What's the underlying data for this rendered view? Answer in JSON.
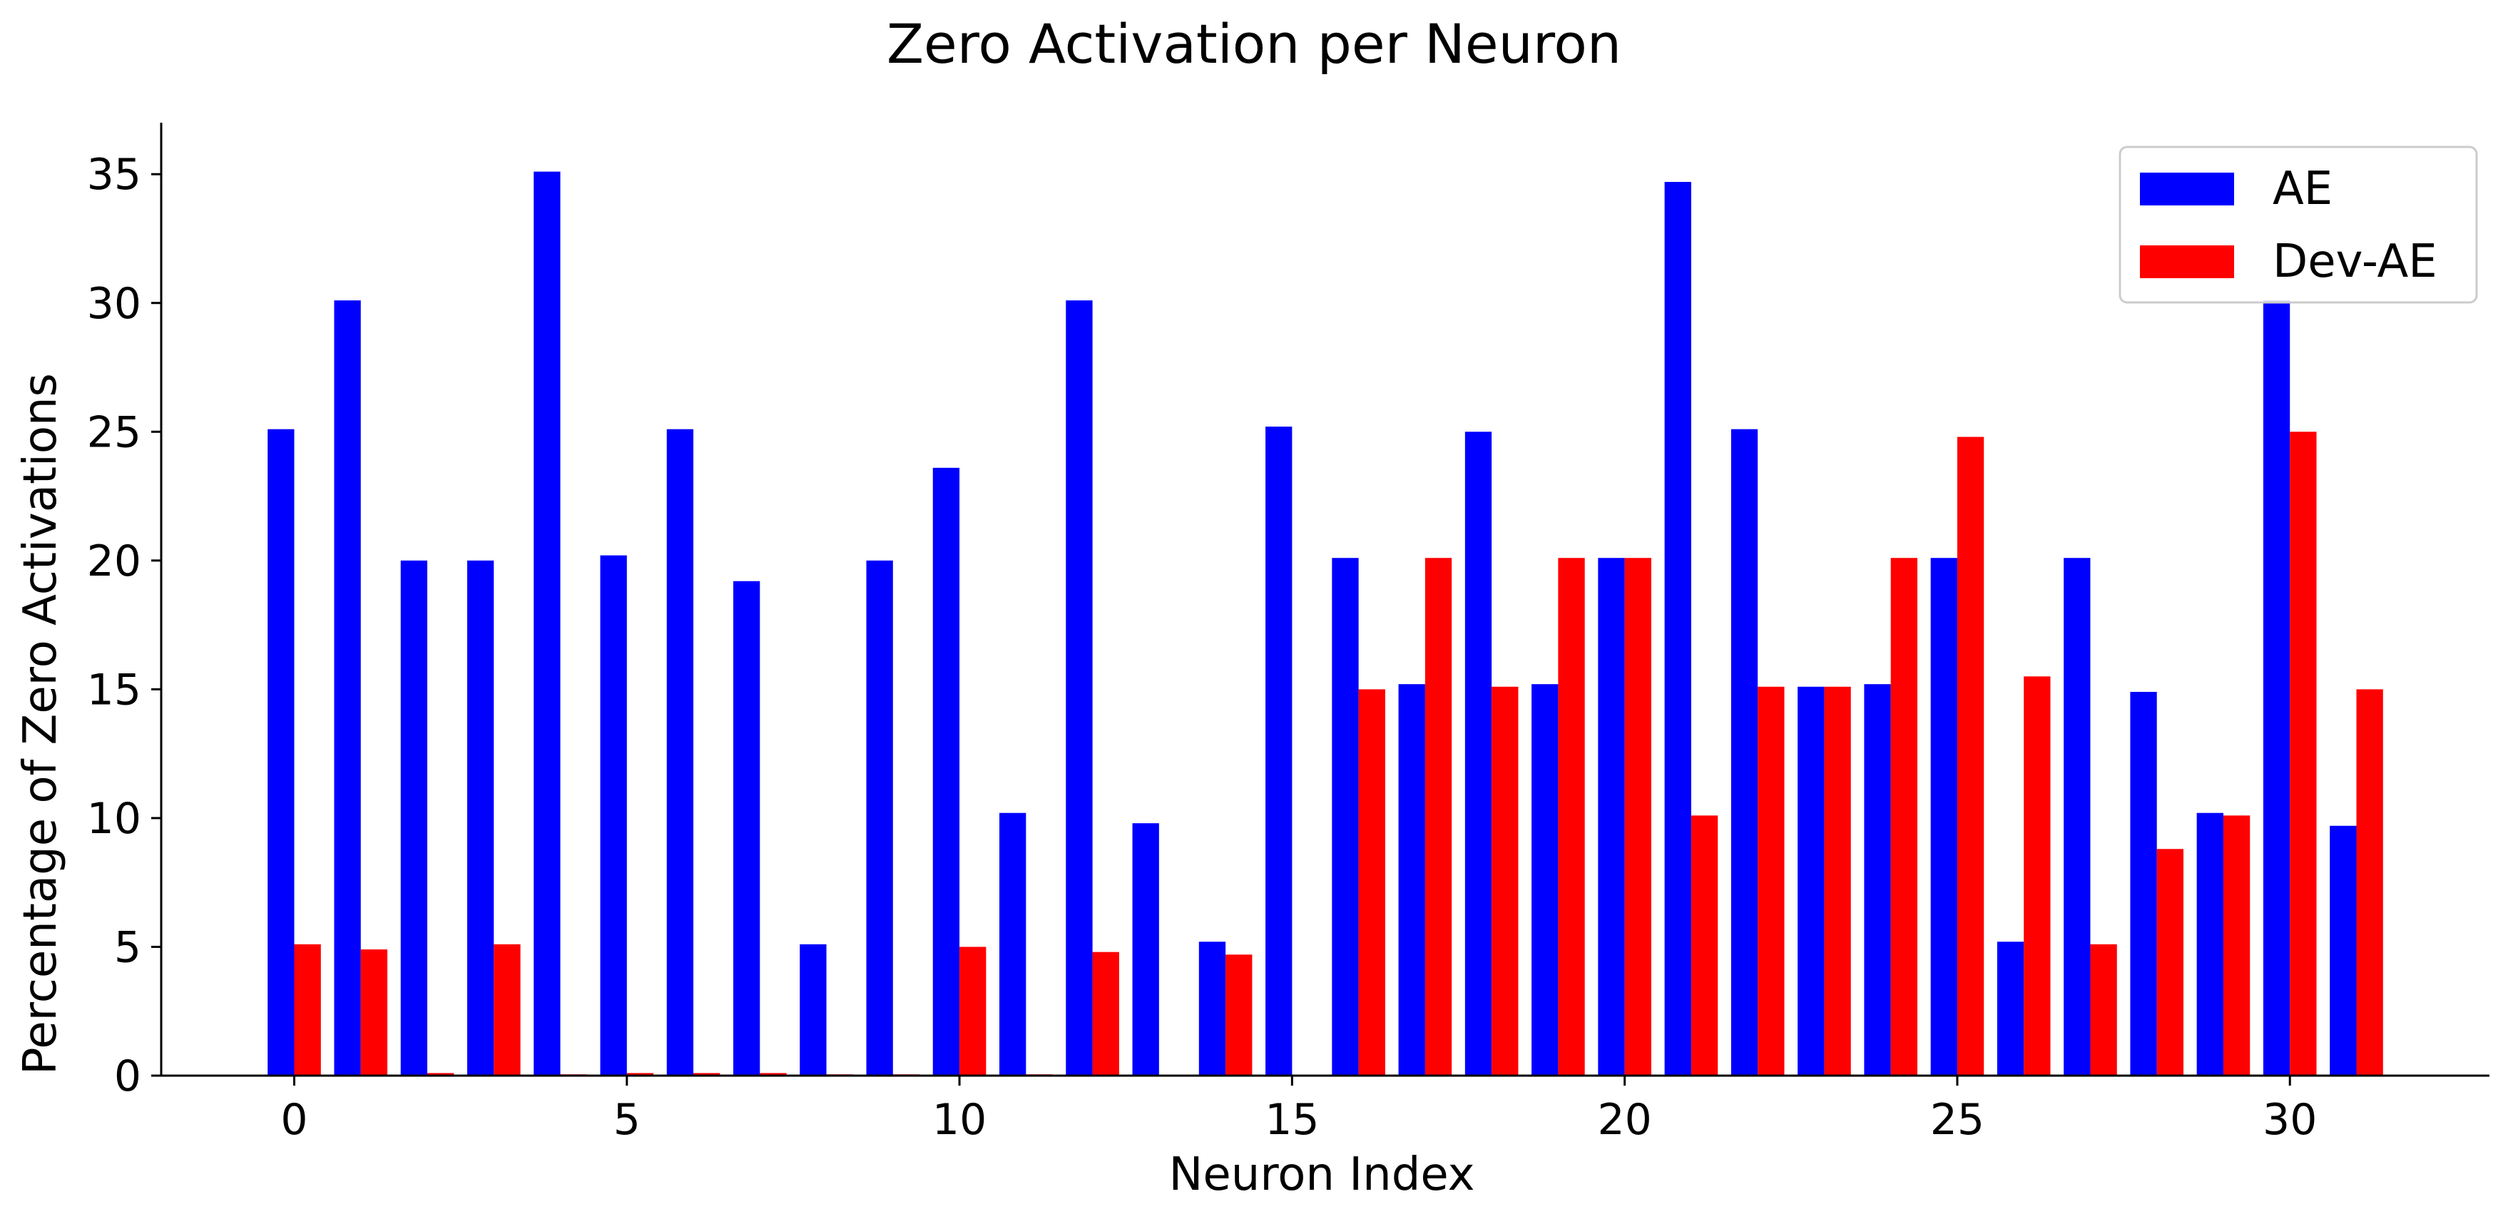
{
  "chart_data": {
    "type": "bar",
    "title": "Zero Activation per Neuron",
    "xlabel": "Neuron Index",
    "ylabel": "Percentage of Zero Activations",
    "x": [
      0,
      1,
      2,
      3,
      4,
      5,
      6,
      7,
      8,
      9,
      10,
      11,
      12,
      13,
      14,
      15,
      16,
      17,
      18,
      19,
      20,
      21,
      22,
      23,
      24,
      25,
      26,
      27,
      28,
      29,
      30,
      31
    ],
    "xticks": [
      0,
      5,
      10,
      15,
      20,
      25,
      30
    ],
    "yticks": [
      0,
      5,
      10,
      15,
      20,
      25,
      30,
      35
    ],
    "xlim": [
      -2,
      33
    ],
    "ylim": [
      0,
      37
    ],
    "grid": false,
    "legend_position": "upper right",
    "series": [
      {
        "name": "AE",
        "color": "#0000ff",
        "values": [
          25.1,
          30.1,
          20.0,
          20.0,
          35.1,
          20.2,
          25.1,
          19.2,
          5.1,
          20.0,
          23.6,
          10.2,
          30.1,
          9.8,
          5.2,
          25.2,
          20.1,
          15.2,
          25.0,
          15.2,
          20.1,
          34.7,
          25.1,
          15.1,
          15.2,
          20.1,
          5.2,
          20.1,
          14.9,
          10.2,
          30.1,
          9.7
        ]
      },
      {
        "name": "Dev-AE",
        "color": "#ff0000",
        "values": [
          5.1,
          4.9,
          0.1,
          5.1,
          0.05,
          0.1,
          0.1,
          0.1,
          0.05,
          0.05,
          5.0,
          0.05,
          4.8,
          0.0,
          4.7,
          0.0,
          15.0,
          20.1,
          15.1,
          20.1,
          20.1,
          10.1,
          15.1,
          15.1,
          20.1,
          24.8,
          15.5,
          5.1,
          8.8,
          10.1,
          25.0,
          15.0
        ]
      }
    ]
  }
}
